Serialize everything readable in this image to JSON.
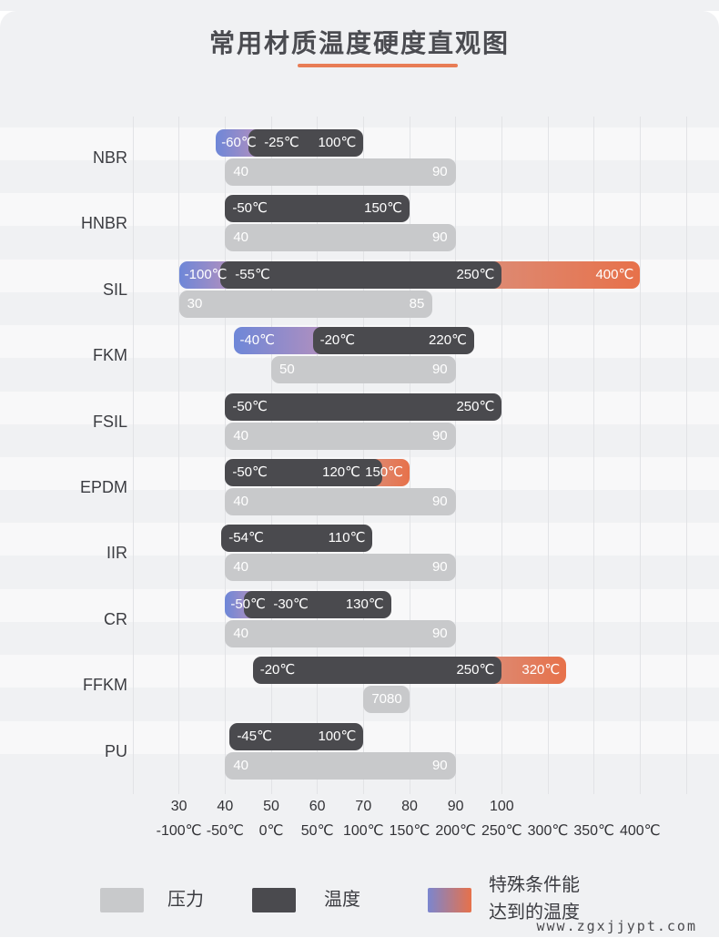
{
  "page": {
    "watermark": "www.zgxjjypt.com"
  },
  "legend": {
    "pressure_label": "压力",
    "temperature_label": "温度",
    "special_label_line1": "特殊条件能",
    "special_label_line2": "达到的温度"
  },
  "colors": {
    "card_bg": "#f0f1f3",
    "gridline": "#e2e3e6",
    "temperature_bar": "#4a4a4e",
    "pressure_bar": "#c8c9cb",
    "special_cold_gradient": [
      "#6e87d8",
      "#b18fbe"
    ],
    "special_hot_gradient": [
      "#dd8a73",
      "#e7714a"
    ],
    "title_underline": "#e87c55"
  },
  "chart_data": {
    "type": "bar",
    "orientation": "horizontal",
    "title": "常用材质温度硬度直观图",
    "temp_axis": {
      "min": -150,
      "max": 450,
      "gridline_step": 50,
      "tick_values": [
        -100,
        -50,
        0,
        50,
        100,
        150,
        200,
        250,
        300,
        350,
        400
      ],
      "tick_labels": [
        "-100℃",
        "-50℃",
        "0℃",
        "50℃",
        "100℃",
        "150℃",
        "200℃",
        "250℃",
        "300℃",
        "350℃",
        "400℃"
      ]
    },
    "hardness_axis": {
      "tick_values": [
        30,
        40,
        50,
        60,
        70,
        80,
        90,
        100
      ],
      "tick_labels": [
        "30",
        "40",
        "50",
        "60",
        "70",
        "80",
        "90",
        "100"
      ],
      "alignment": "hardness 30 aligns with -100℃ gridline, 10 hardness units per 50℃"
    },
    "rows": [
      {
        "material": "NBR",
        "special_cold": {
          "min": -60,
          "label": "-60℃"
        },
        "temperature": {
          "min": -25,
          "max": 100,
          "min_label": "-25℃",
          "max_label": "100℃"
        },
        "special_hot": null,
        "pressure": {
          "min": 40,
          "max": 90,
          "min_label": "40",
          "max_label": "90"
        }
      },
      {
        "material": "HNBR",
        "special_cold": null,
        "temperature": {
          "min": -50,
          "max": 150,
          "min_label": "-50℃",
          "max_label": "150℃"
        },
        "special_hot": null,
        "pressure": {
          "min": 40,
          "max": 90,
          "min_label": "40",
          "max_label": "90"
        }
      },
      {
        "material": "SIL",
        "special_cold": {
          "min": -100,
          "label": "-100℃"
        },
        "temperature": {
          "min": -55,
          "max": 250,
          "min_label": "-55℃",
          "max_label": "250℃"
        },
        "special_hot": {
          "max": 400,
          "label": "400℃"
        },
        "pressure": {
          "min": 30,
          "max": 85,
          "min_label": "30",
          "max_label": "85"
        }
      },
      {
        "material": "FKM",
        "special_cold": {
          "min": -40,
          "label": "-40℃",
          "visual_end": 45
        },
        "temperature": {
          "min": -20,
          "max": 220,
          "min_label": "-20℃",
          "max_label": "220℃"
        },
        "special_hot": null,
        "pressure": {
          "min": 50,
          "max": 90,
          "min_label": "50",
          "max_label": "90"
        }
      },
      {
        "material": "FSIL",
        "special_cold": null,
        "temperature": {
          "min": -50,
          "max": 250,
          "min_label": "-50℃",
          "max_label": "250℃"
        },
        "special_hot": null,
        "pressure": {
          "min": 40,
          "max": 90,
          "min_label": "40",
          "max_label": "90"
        }
      },
      {
        "material": "EPDM",
        "special_cold": null,
        "temperature": {
          "min": -50,
          "max": 120,
          "min_label": "-50℃",
          "max_label": "120℃"
        },
        "special_hot": {
          "max": 150,
          "label": "150℃"
        },
        "pressure": {
          "min": 40,
          "max": 90,
          "min_label": "40",
          "max_label": "90"
        }
      },
      {
        "material": "IIR",
        "special_cold": null,
        "temperature": {
          "min": -54,
          "max": 110,
          "min_label": "-54℃",
          "max_label": "110℃"
        },
        "special_hot": null,
        "pressure": {
          "min": 40,
          "max": 90,
          "min_label": "40",
          "max_label": "90"
        }
      },
      {
        "material": "CR",
        "special_cold": {
          "min": -50,
          "label": "-50℃"
        },
        "temperature": {
          "min": -30,
          "max": 130,
          "min_label": "-30℃",
          "max_label": "130℃"
        },
        "special_hot": null,
        "pressure": {
          "min": 40,
          "max": 90,
          "min_label": "40",
          "max_label": "90"
        }
      },
      {
        "material": "FFKM",
        "special_cold": null,
        "temperature": {
          "min": -20,
          "max": 250,
          "min_label": "-20℃",
          "max_label": "250℃"
        },
        "special_hot": {
          "max": 320,
          "label": "320℃"
        },
        "pressure": {
          "min": 70,
          "max": 80,
          "min_label": "70",
          "max_label": "80"
        }
      },
      {
        "material": "PU",
        "special_cold": null,
        "temperature": {
          "min": -45,
          "max": 100,
          "min_label": "-45℃",
          "max_label": "100℃"
        },
        "special_hot": null,
        "pressure": {
          "min": 40,
          "max": 90,
          "min_label": "40",
          "max_label": "90"
        }
      }
    ]
  }
}
